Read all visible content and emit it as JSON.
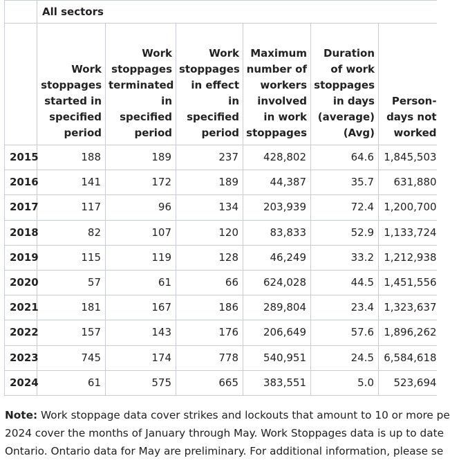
{
  "table": {
    "group_header": "All sectors",
    "columns": [
      "Work stoppages started in specified period",
      "Work stoppages terminated in specified period",
      "Work stoppages in effect in specified period",
      "Maximum number of workers involved in work stoppages",
      "Duration of work stoppages in days (average) (Avg)",
      "Person-days not worked"
    ],
    "rows": [
      {
        "year": "2015",
        "cells": [
          "188",
          "189",
          "237",
          "428,802",
          "64.6",
          "1,845,503"
        ]
      },
      {
        "year": "2016",
        "cells": [
          "141",
          "172",
          "189",
          "44,387",
          "35.7",
          "631,880"
        ]
      },
      {
        "year": "2017",
        "cells": [
          "117",
          "96",
          "134",
          "203,939",
          "72.4",
          "1,200,700"
        ]
      },
      {
        "year": "2018",
        "cells": [
          "82",
          "107",
          "120",
          "83,833",
          "52.9",
          "1,133,724"
        ]
      },
      {
        "year": "2019",
        "cells": [
          "115",
          "119",
          "128",
          "46,249",
          "33.2",
          "1,212,938"
        ]
      },
      {
        "year": "2020",
        "cells": [
          "57",
          "61",
          "66",
          "624,028",
          "44.5",
          "1,451,556"
        ]
      },
      {
        "year": "2021",
        "cells": [
          "181",
          "167",
          "186",
          "289,804",
          "23.4",
          "1,323,637"
        ]
      },
      {
        "year": "2022",
        "cells": [
          "157",
          "143",
          "176",
          "206,649",
          "57.6",
          "1,896,262"
        ]
      },
      {
        "year": "2023",
        "cells": [
          "745",
          "174",
          "778",
          "540,951",
          "24.5",
          "6,584,618"
        ]
      },
      {
        "year": "2024",
        "cells": [
          "61",
          "575",
          "665",
          "383,551",
          "5.0",
          "523,694"
        ]
      }
    ]
  },
  "note": {
    "label": "Note:",
    "line1": " Work stoppage data cover strikes and lockouts that amount to 10 or more pe",
    "line2": "2024 cover the months of January through May. Work Stoppages data is up to date",
    "line3": "Ontario. Ontario data for May are preliminary. For additional information, please se"
  }
}
